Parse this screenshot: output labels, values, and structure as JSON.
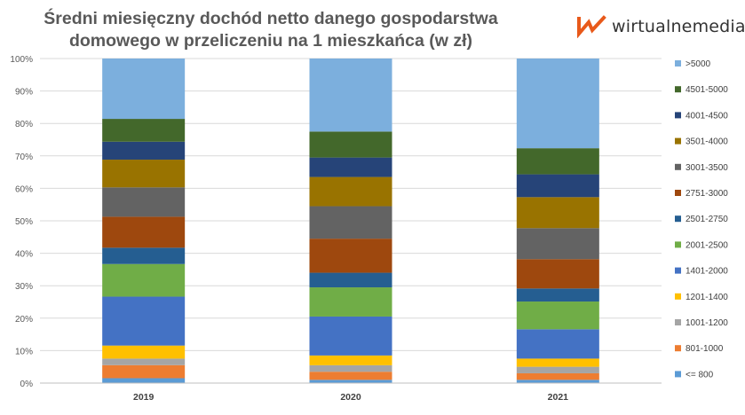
{
  "chart_data": {
    "type": "bar",
    "stacked": true,
    "normalized": true,
    "title": "Średni miesięczny dochód netto danego gospodarstwa domowego w przeliczeniu na 1 mieszkańca (w zł)",
    "title_lines": [
      "Średni miesięczny dochód netto danego gospodarstwa",
      "domowego w przeliczeniu na 1 mieszkańca (w zł)"
    ],
    "categories": [
      "2019",
      "2020",
      "2021"
    ],
    "ylim": [
      0,
      100
    ],
    "yticks": [
      "0%",
      "10%",
      "20%",
      "30%",
      "40%",
      "50%",
      "60%",
      "70%",
      "80%",
      "90%",
      "100%"
    ],
    "grid": true,
    "legend_position": "right",
    "series": [
      {
        "name": "<= 800",
        "color": "#5b9bd5",
        "values": [
          1.5,
          1.0,
          1.0
        ]
      },
      {
        "name": "801-1000",
        "color": "#ed7d31",
        "values": [
          4.0,
          2.5,
          2.0
        ]
      },
      {
        "name": "1001-1200",
        "color": "#a5a5a5",
        "values": [
          2.0,
          2.0,
          2.0
        ]
      },
      {
        "name": "1201-1400",
        "color": "#ffc000",
        "values": [
          4.0,
          3.0,
          2.5
        ]
      },
      {
        "name": "1401-2000",
        "color": "#4472c4",
        "values": [
          15.0,
          12.0,
          9.0
        ]
      },
      {
        "name": "2001-2500",
        "color": "#70ad47",
        "values": [
          10.0,
          9.0,
          8.5
        ]
      },
      {
        "name": "2501-2750",
        "color": "#255e91",
        "values": [
          5.0,
          4.5,
          4.0
        ]
      },
      {
        "name": "2751-3000",
        "color": "#9e480e",
        "values": [
          9.5,
          10.5,
          9.0
        ]
      },
      {
        "name": "3001-3500",
        "color": "#636363",
        "values": [
          9.0,
          10.0,
          9.5
        ]
      },
      {
        "name": "3501-4000",
        "color": "#997300",
        "values": [
          8.5,
          9.0,
          9.5
        ]
      },
      {
        "name": "4001-4500",
        "color": "#264478",
        "values": [
          5.5,
          6.0,
          7.0
        ]
      },
      {
        "name": "4501-5000",
        "color": "#43682b",
        "values": [
          7.0,
          8.0,
          8.0
        ]
      },
      {
        "name": ">5000",
        "color": "#7cafdd",
        "values": [
          18.5,
          22.5,
          27.5
        ]
      }
    ]
  },
  "logo": {
    "text": "wirtualnemedia",
    "color": "#e8591a"
  }
}
